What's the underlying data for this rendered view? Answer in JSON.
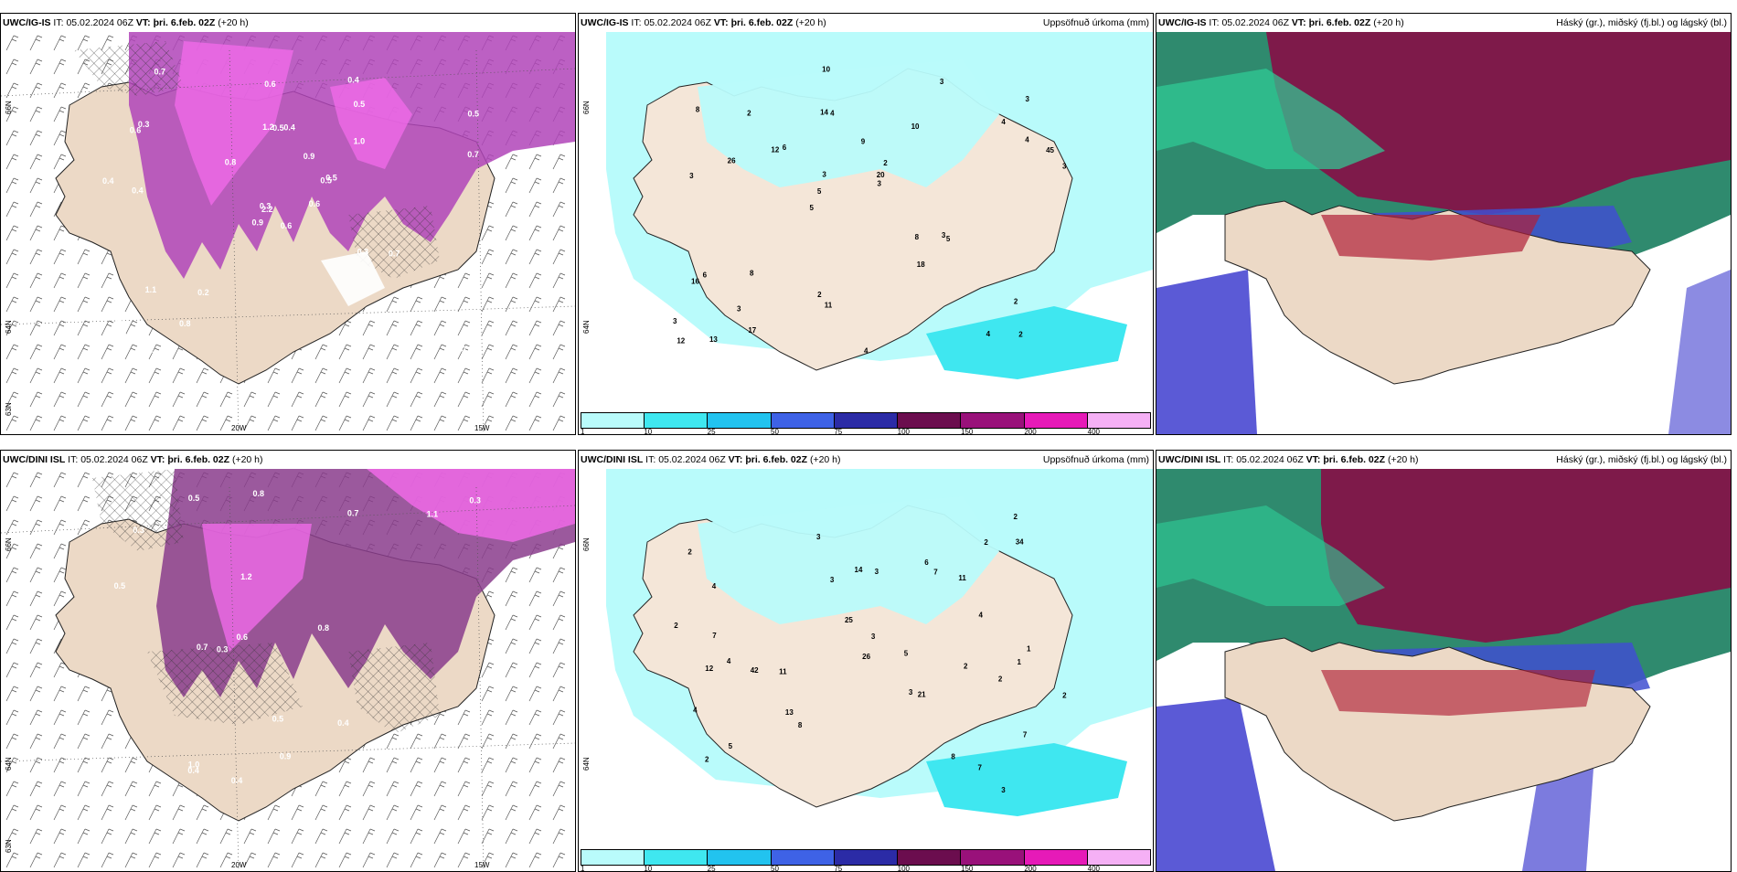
{
  "common": {
    "it_label": "IT:",
    "it_value": "05.02.2024 06Z",
    "vt_label": "VT:",
    "vt_value": "þri. 6.feb. 02Z",
    "lead": "(+20 h)"
  },
  "rows": [
    {
      "model": "UWC/IG-IS",
      "panels": [
        {
          "id": "wind-cloud",
          "right_title": ""
        },
        {
          "id": "precip",
          "right_title": "Uppsöfnuð úrkoma (mm)"
        },
        {
          "id": "clouds",
          "right_title": "Háský (gr.), miðský (fj.bl.) og lágský (bl.)"
        }
      ]
    },
    {
      "model": "UWC/DINI ISL",
      "panels": [
        {
          "id": "wind-cloud",
          "right_title": ""
        },
        {
          "id": "precip",
          "right_title": "Uppsöfnuð úrkoma (mm)"
        },
        {
          "id": "clouds",
          "right_title": "Háský (gr.), miðský (fj.bl.) og lágský (bl.)"
        }
      ]
    }
  ],
  "axes": {
    "lat_labels": [
      "66N",
      "64N",
      "63N"
    ],
    "lon_labels": [
      "20W",
      "15W"
    ],
    "lat_labels_precip": [
      "66N",
      "64N"
    ]
  },
  "precip_legend": {
    "ticks": [
      "1",
      "10",
      "25",
      "50",
      "75",
      "100",
      "150",
      "200",
      "400"
    ],
    "colors": [
      "#b9fbfb",
      "#3fe7f0",
      "#22c3ef",
      "#3e62e6",
      "#2b2ba6",
      "#6b0d4e",
      "#99117a",
      "#e61ab8",
      "#f5b0f5"
    ]
  },
  "precip_values_ig": [
    "2",
    "3",
    "3",
    "5",
    "10",
    "13",
    "14",
    "9",
    "6",
    "6",
    "3",
    "3",
    "4",
    "2",
    "5",
    "8",
    "10",
    "3",
    "8",
    "4",
    "5",
    "2",
    "3",
    "2",
    "3",
    "8",
    "4",
    "2",
    "3",
    "4",
    "12",
    "26",
    "18",
    "17",
    "45",
    "20",
    "12",
    "11",
    "3",
    "16",
    "4"
  ],
  "precip_values_dini": [
    "3",
    "4",
    "3",
    "2",
    "7",
    "4",
    "5",
    "11",
    "11",
    "14",
    "7",
    "7",
    "8",
    "3",
    "5",
    "4",
    "2",
    "3",
    "2",
    "2",
    "2",
    "3",
    "4",
    "2",
    "1",
    "7",
    "42",
    "26",
    "25",
    "34",
    "21",
    "12",
    "13",
    "6",
    "3",
    "2",
    "1",
    "8",
    "2"
  ],
  "cloud_values_ig": [
    "0.6",
    "0.6",
    "2.2",
    "0.6",
    "0.5",
    "0.2",
    "0.4",
    "0.4",
    "0.5",
    "0.6",
    "0.7",
    "0.6",
    "0.4",
    "0.5",
    "0.9",
    "1.0",
    "1.3",
    "1.2",
    "0.9",
    "1.1",
    "0.8",
    "1.2",
    "0.8",
    "0.5",
    "0.5",
    "0.7",
    "0.3",
    "0.6",
    "0.4",
    "0.3",
    "0.7",
    "0.3"
  ],
  "cloud_values_dini": [
    "0.4",
    "0.8",
    "1.0",
    "0.6",
    "0.5",
    "0.3",
    "0.7",
    "0.9",
    "0.8",
    "1.2",
    "1.1",
    "0.9",
    "0.6",
    "0.5",
    "0.7",
    "0.8",
    "0.5",
    "0.4",
    "0.3",
    "0.2",
    "0.4",
    "0.3"
  ]
}
